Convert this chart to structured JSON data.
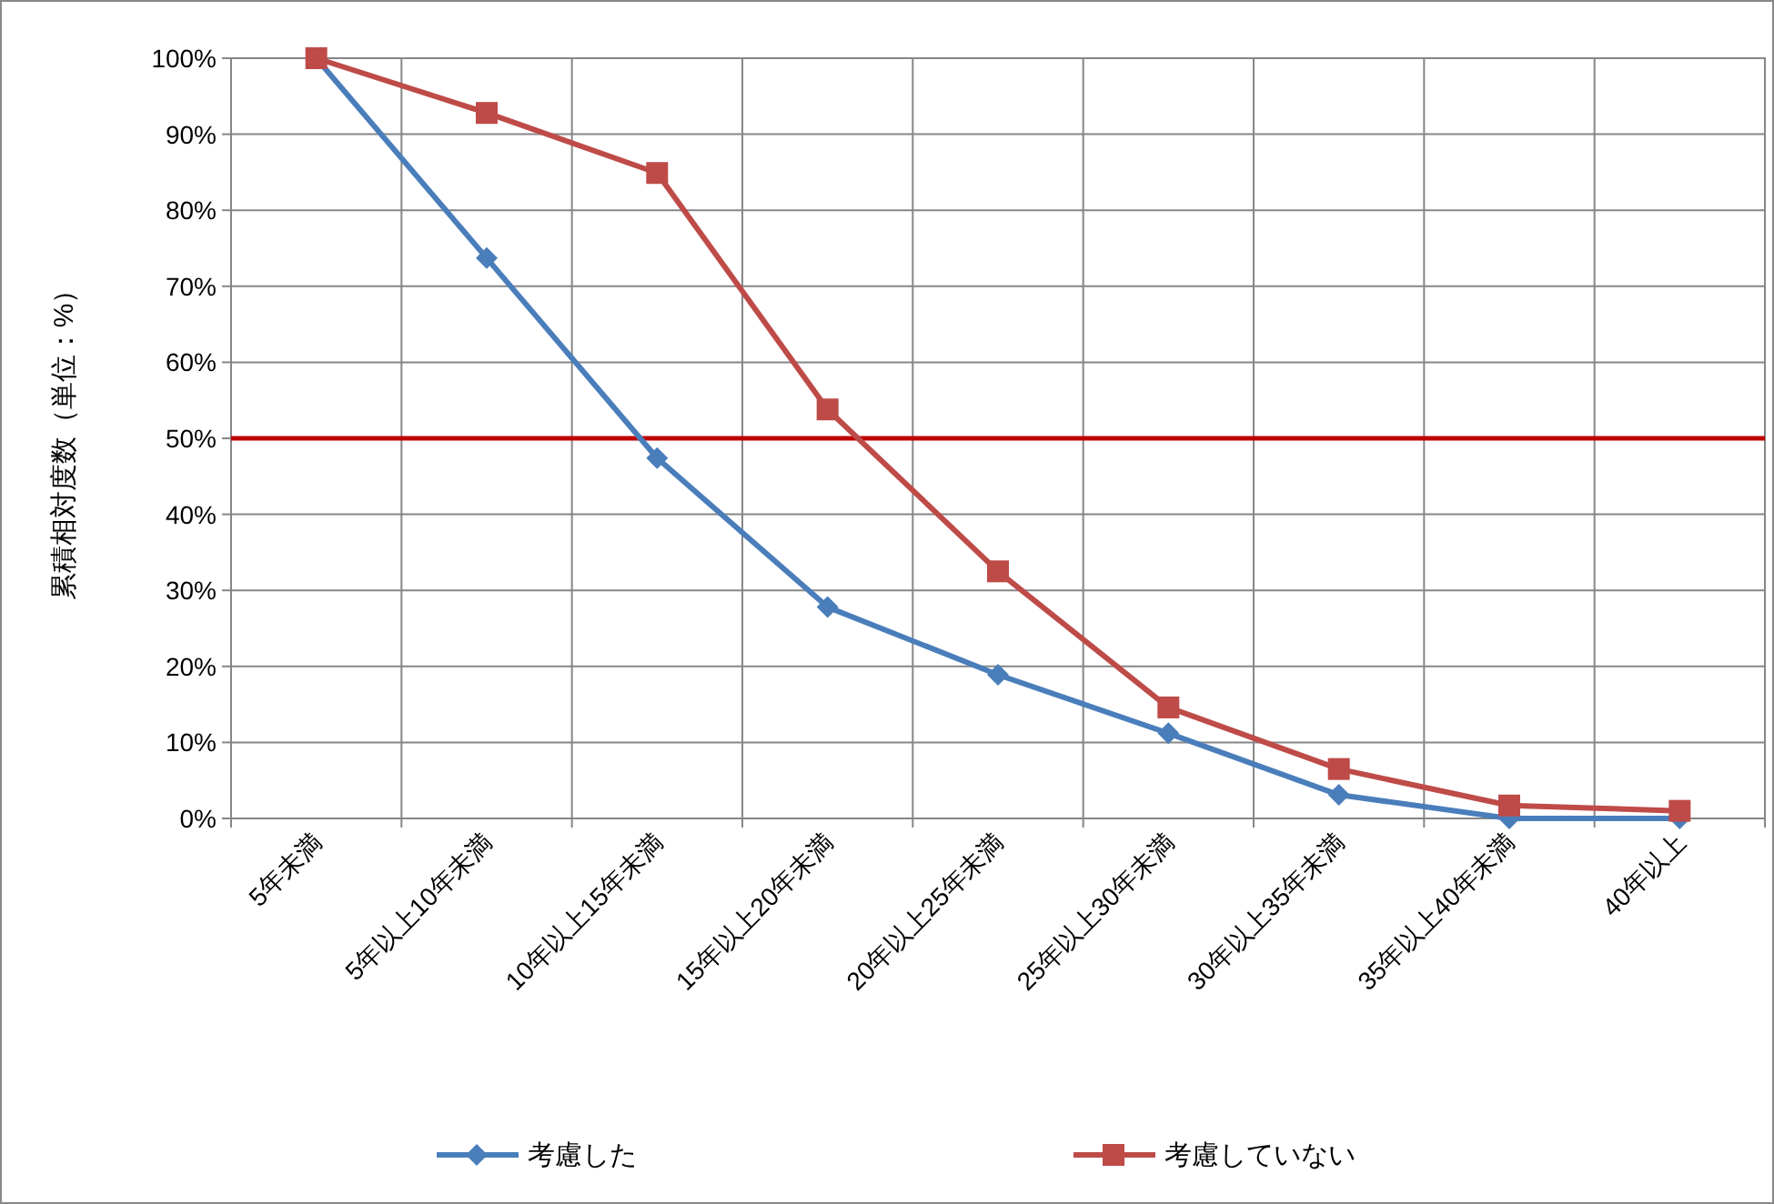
{
  "chart_data": {
    "type": "line",
    "ylabel": "累積相対度数（単位：%）",
    "categories": [
      "5年未満",
      "5年以上10年未満",
      "10年以上15年未満",
      "15年以上20年未満",
      "20年以上25年未満",
      "25年以上30年未満",
      "30年以上35年未満",
      "35年以上40年未満",
      "40年以上"
    ],
    "ylim": [
      0,
      100
    ],
    "yticks": [
      {
        "value": 0,
        "label": "0%"
      },
      {
        "value": 10,
        "label": "10%"
      },
      {
        "value": 20,
        "label": "20%"
      },
      {
        "value": 30,
        "label": "30%"
      },
      {
        "value": 40,
        "label": "40%"
      },
      {
        "value": 50,
        "label": "50%"
      },
      {
        "value": 60,
        "label": "60%"
      },
      {
        "value": 70,
        "label": "70%"
      },
      {
        "value": 80,
        "label": "80%"
      },
      {
        "value": 90,
        "label": "90%"
      },
      {
        "value": 100,
        "label": "100%"
      }
    ],
    "grid": true,
    "legend": "bottom",
    "series": [
      {
        "name": "考慮した",
        "color": "#4a7ebb",
        "marker": "diamond",
        "values": [
          100,
          73.7,
          47.4,
          27.8,
          18.9,
          11.2,
          3.1,
          0,
          0
        ]
      },
      {
        "name": "考慮していない",
        "color": "#be4b48",
        "marker": "square",
        "values": [
          100,
          92.8,
          84.9,
          53.8,
          32.5,
          14.6,
          6.5,
          1.7,
          1.0
        ]
      }
    ],
    "ref_lines": [
      {
        "axis": "y",
        "value": 50,
        "color": "#c00000"
      }
    ]
  }
}
